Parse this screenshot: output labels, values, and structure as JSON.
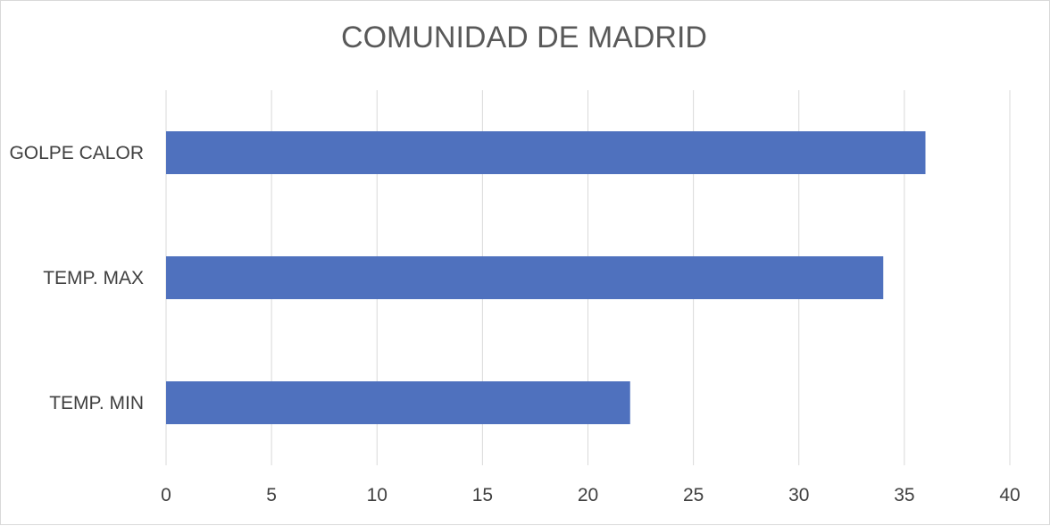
{
  "chart_data": {
    "type": "bar",
    "orientation": "horizontal",
    "title": "COMUNIDAD DE MADRID",
    "categories": [
      "GOLPE CALOR",
      "TEMP. MAX",
      "TEMP. MIN"
    ],
    "values": [
      36,
      34,
      22
    ],
    "xlim": [
      0,
      40
    ],
    "xticks": [
      0,
      5,
      10,
      15,
      20,
      25,
      30,
      35,
      40
    ],
    "xlabel": "",
    "ylabel": "",
    "grid": "vertical",
    "legend": "none",
    "bar_color": "#4f71be"
  }
}
